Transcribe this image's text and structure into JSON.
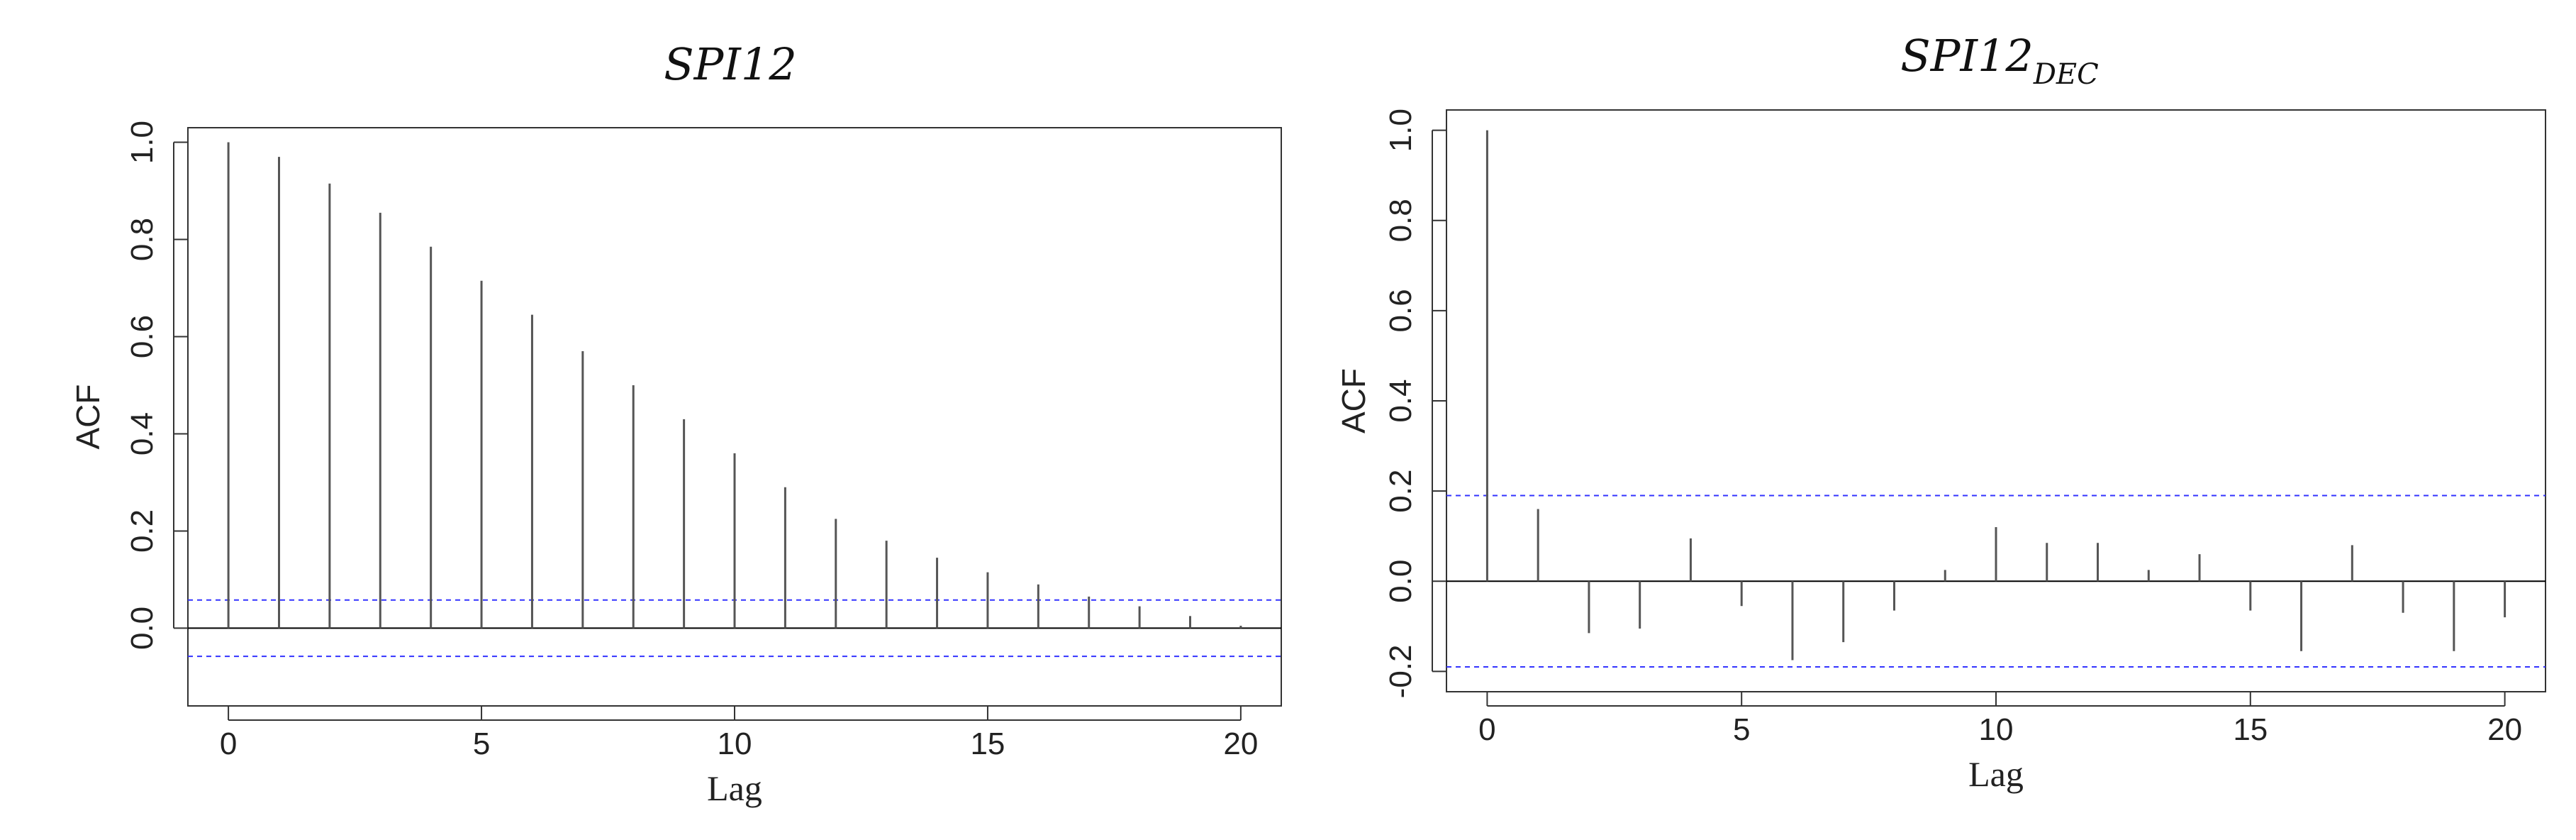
{
  "chart_data": [
    {
      "type": "bar",
      "title": "SPI12",
      "title_subscript": "",
      "xlabel": "Lag",
      "ylabel": "ACF",
      "xlim": [
        -0.8,
        20.8
      ],
      "ylim": [
        -0.16,
        1.03
      ],
      "xticks": [
        0,
        5,
        10,
        15,
        20
      ],
      "yticks": [
        0.0,
        0.2,
        0.4,
        0.6,
        0.8,
        1.0
      ],
      "ytick_labels": [
        "0.0",
        "0.2",
        "0.4",
        "0.6",
        "0.8",
        "1.0"
      ],
      "lags": [
        0,
        1,
        2,
        3,
        4,
        5,
        6,
        7,
        8,
        9,
        10,
        11,
        12,
        13,
        14,
        15,
        16,
        17,
        18,
        19,
        20
      ],
      "values": [
        1.0,
        0.97,
        0.915,
        0.855,
        0.785,
        0.715,
        0.645,
        0.57,
        0.5,
        0.43,
        0.36,
        0.29,
        0.225,
        0.18,
        0.145,
        0.115,
        0.09,
        0.065,
        0.045,
        0.025,
        0.005
      ],
      "confidence_bound": 0.058,
      "grid": false,
      "colors": {
        "bars": "#555555",
        "ci": "#3333ff",
        "zero": "#000000"
      }
    },
    {
      "type": "bar",
      "title": "SPI12",
      "title_subscript": "DEC",
      "xlabel": "Lag",
      "ylabel": "ACF",
      "xlim": [
        -0.8,
        20.8
      ],
      "ylim": [
        -0.245,
        1.045
      ],
      "xticks": [
        0,
        5,
        10,
        15,
        20
      ],
      "yticks": [
        -0.2,
        0.0,
        0.2,
        0.4,
        0.6,
        0.8,
        1.0
      ],
      "ytick_labels": [
        "-0.2",
        "0.0",
        "0.2",
        "0.4",
        "0.6",
        "0.8",
        "1.0"
      ],
      "lags": [
        0,
        1,
        2,
        3,
        4,
        5,
        6,
        7,
        8,
        9,
        10,
        11,
        12,
        13,
        14,
        15,
        16,
        17,
        18,
        19,
        20
      ],
      "values": [
        1.0,
        0.16,
        -0.115,
        -0.105,
        0.095,
        -0.055,
        -0.175,
        -0.135,
        -0.065,
        0.025,
        0.12,
        0.085,
        0.085,
        0.025,
        0.06,
        -0.065,
        -0.155,
        0.08,
        -0.07,
        -0.155,
        -0.08
      ],
      "confidence_bound": 0.19,
      "grid": false,
      "colors": {
        "bars": "#555555",
        "ci": "#3333ff",
        "zero": "#000000"
      }
    }
  ]
}
